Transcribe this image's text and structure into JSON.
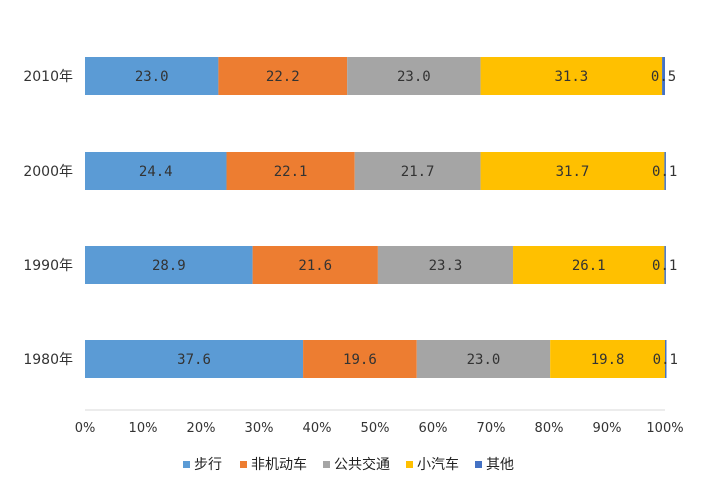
{
  "chart_data": {
    "type": "bar",
    "orientation": "horizontal",
    "stacked": true,
    "percent": true,
    "title": "",
    "xlabel": "",
    "ylabel": "",
    "xlim": [
      0,
      100
    ],
    "x_ticks": [
      "0%",
      "10%",
      "20%",
      "30%",
      "40%",
      "50%",
      "60%",
      "70%",
      "80%",
      "90%",
      "100%"
    ],
    "grid": false,
    "legend_position": "bottom",
    "categories": [
      "2010年",
      "2000年",
      "1990年",
      "1980年"
    ],
    "series": [
      {
        "name": "步行",
        "color": "#5b9bd5",
        "values": [
          23.0,
          24.4,
          28.9,
          37.6
        ]
      },
      {
        "name": "非机动车",
        "color": "#ed7d31",
        "values": [
          22.2,
          22.1,
          21.6,
          19.6
        ]
      },
      {
        "name": "公共交通",
        "color": "#a5a5a5",
        "values": [
          23.0,
          21.7,
          23.3,
          23.0
        ]
      },
      {
        "name": "小汽车",
        "color": "#ffc000",
        "values": [
          31.3,
          31.7,
          26.1,
          19.8
        ]
      },
      {
        "name": "其他",
        "color": "#4472c4",
        "values": [
          0.5,
          0.1,
          0.1,
          0.1
        ]
      }
    ]
  }
}
